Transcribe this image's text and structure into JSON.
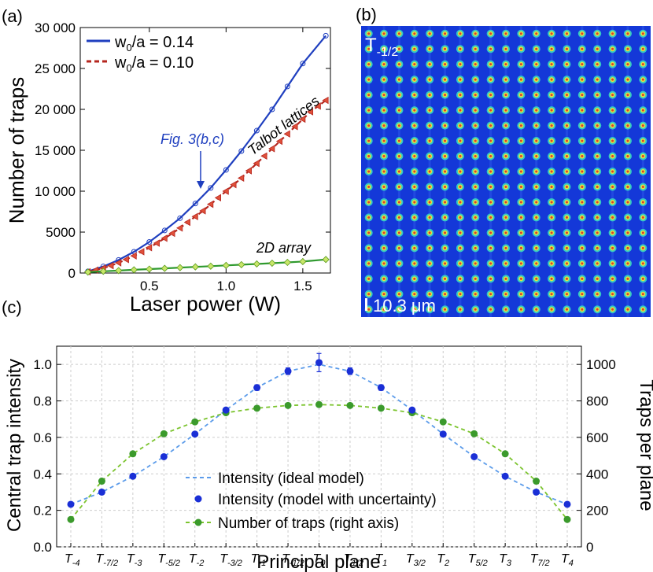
{
  "panel_labels": {
    "a": "(a)",
    "b": "(b)",
    "c": "(c)"
  },
  "chart_data": [
    {
      "type": "line",
      "panel": "(a)",
      "xlabel": "Laser power (W)",
      "ylabel": "Number of traps",
      "xlim": [
        0.05,
        1.68
      ],
      "ylim": [
        0,
        30000
      ],
      "xticks": [
        0.5,
        1.0,
        1.5
      ],
      "xticklabels": [
        "0.5",
        "1.0",
        "1.5"
      ],
      "yticks": [
        0,
        5000,
        10000,
        15000,
        20000,
        25000,
        30000
      ],
      "yticklabels": [
        "0",
        "5000",
        "10 000",
        "15 000",
        "20 000",
        "25 000",
        "30 000"
      ],
      "legend_position": "top-left",
      "series": [
        {
          "name": "w0/a = 0.14",
          "label_main": "w",
          "label_sub": "0",
          "label_rest": "/a = 0.14",
          "color": "#1f3fbf",
          "marker": "circle",
          "x": [
            0.1,
            0.2,
            0.3,
            0.4,
            0.5,
            0.6,
            0.7,
            0.8,
            0.9,
            1.0,
            1.1,
            1.2,
            1.3,
            1.4,
            1.5,
            1.65
          ],
          "y": [
            200,
            800,
            1600,
            2600,
            3800,
            5200,
            6700,
            8500,
            10400,
            12600,
            14900,
            17400,
            20000,
            22800,
            25600,
            29000
          ]
        },
        {
          "name": "w0/a = 0.10",
          "label_main": "w",
          "label_sub": "0",
          "label_rest": "/a = 0.10",
          "color": "#b5261e",
          "marker": "triangle",
          "dashed": true,
          "x": [
            0.1,
            0.15,
            0.2,
            0.25,
            0.3,
            0.35,
            0.4,
            0.45,
            0.5,
            0.55,
            0.6,
            0.65,
            0.7,
            0.75,
            0.8,
            0.85,
            0.9,
            0.95,
            1.0,
            1.05,
            1.1,
            1.15,
            1.2,
            1.25,
            1.3,
            1.35,
            1.4,
            1.45,
            1.5,
            1.55,
            1.6,
            1.65
          ],
          "y": [
            150,
            350,
            600,
            900,
            1250,
            1650,
            2100,
            2600,
            3100,
            3650,
            4250,
            4850,
            5500,
            6200,
            6900,
            7600,
            8400,
            9200,
            10000,
            10800,
            11600,
            12500,
            13400,
            14300,
            15200,
            16100,
            17000,
            17900,
            18800,
            19700,
            20400,
            21100
          ]
        },
        {
          "name": "2D array",
          "color": "#2f9a2f",
          "marker": "diamond",
          "x": [
            0.1,
            0.2,
            0.3,
            0.4,
            0.5,
            0.6,
            0.7,
            0.8,
            0.9,
            1.0,
            1.1,
            1.2,
            1.3,
            1.4,
            1.5,
            1.65
          ],
          "y": [
            120,
            210,
            300,
            390,
            480,
            570,
            660,
            750,
            840,
            930,
            1020,
            1110,
            1200,
            1300,
            1400,
            1650
          ]
        }
      ],
      "annotations": [
        {
          "text": "Fig. 3(b,c)",
          "x": 0.8,
          "y": 10000,
          "color": "#1f3fbf"
        },
        {
          "text": "Talbot lattices"
        },
        {
          "text": "2D array"
        }
      ]
    },
    {
      "type": "heatmap",
      "panel": "(b)",
      "title": "T",
      "title_sub": "-1/2",
      "rows": 19,
      "cols": 19,
      "background": "#1438d8",
      "scale_label": "10.3 μm"
    },
    {
      "type": "line",
      "panel": "(c)",
      "xlabel": "Principal plane",
      "ylabel": "Central trap intensity",
      "y2label": "Traps per plane",
      "ylim": [
        0,
        1.1
      ],
      "y2lim": [
        0,
        1100
      ],
      "yticks": [
        0.0,
        0.2,
        0.4,
        0.6,
        0.8,
        1.0
      ],
      "yticklabels": [
        "0.0",
        "0.2",
        "0.4",
        "0.6",
        "0.8",
        "1.0"
      ],
      "y2ticks": [
        0,
        200,
        400,
        600,
        800,
        1000
      ],
      "y2ticklabels": [
        "0",
        "200",
        "400",
        "600",
        "800",
        "1000"
      ],
      "categories": [
        {
          "main": "T",
          "sub": "-4"
        },
        {
          "main": "T",
          "sub": "-7/2"
        },
        {
          "main": "T",
          "sub": "-3"
        },
        {
          "main": "T",
          "sub": "-5/2"
        },
        {
          "main": "T",
          "sub": "-2"
        },
        {
          "main": "T",
          "sub": "-3/2"
        },
        {
          "main": "T",
          "sub": "-1"
        },
        {
          "main": "T",
          "sub": "-1/2"
        },
        {
          "main": "T",
          "sub": "0"
        },
        {
          "main": "T",
          "sub": "1/2"
        },
        {
          "main": "T",
          "sub": "1"
        },
        {
          "main": "T",
          "sub": "3/2"
        },
        {
          "main": "T",
          "sub": "2"
        },
        {
          "main": "T",
          "sub": "5/2"
        },
        {
          "main": "T",
          "sub": "3"
        },
        {
          "main": "T",
          "sub": "7/2"
        },
        {
          "main": "T",
          "sub": "4"
        }
      ],
      "legend_position": "bottom-center",
      "series": [
        {
          "name": "Intensity (ideal model)",
          "color": "#5b9bea",
          "dashed": true,
          "axis": "left",
          "values": [
            0.233,
            0.3,
            0.387,
            0.494,
            0.618,
            0.75,
            0.873,
            0.963,
            1.0,
            0.963,
            0.873,
            0.75,
            0.618,
            0.494,
            0.387,
            0.3,
            0.233
          ]
        },
        {
          "name": "Intensity (model with uncertainty)",
          "color": "#1a2fd6",
          "marker": "circle",
          "axis": "left",
          "values": [
            0.233,
            0.3,
            0.387,
            0.494,
            0.618,
            0.75,
            0.873,
            0.963,
            1.01,
            0.963,
            0.873,
            0.75,
            0.618,
            0.494,
            0.387,
            0.3,
            0.233
          ],
          "errors": [
            0.005,
            0.005,
            0.006,
            0.007,
            0.009,
            0.011,
            0.015,
            0.018,
            0.05,
            0.018,
            0.015,
            0.011,
            0.009,
            0.007,
            0.006,
            0.005,
            0.005
          ]
        },
        {
          "name": "Number of traps (right axis)",
          "color": "#7cc42f",
          "dashed": true,
          "marker": "circle",
          "marker_color": "#3b9a2c",
          "axis": "right",
          "values": [
            150,
            360,
            510,
            620,
            685,
            735,
            760,
            775,
            780,
            775,
            760,
            735,
            685,
            620,
            510,
            360,
            150
          ]
        }
      ]
    }
  ]
}
